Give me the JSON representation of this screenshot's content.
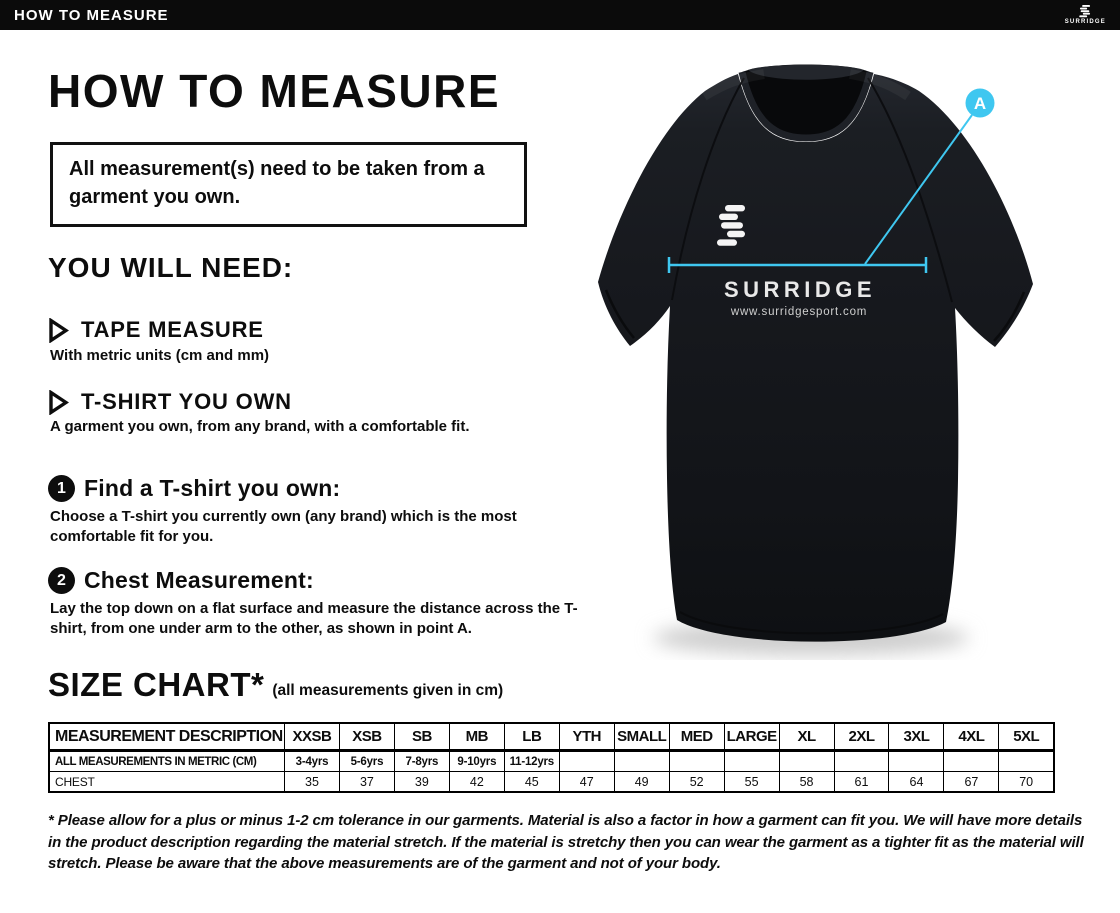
{
  "topbar": {
    "title": "HOW TO MEASURE",
    "brand": "SURRIDGE"
  },
  "page": {
    "title": "HOW TO MEASURE",
    "notice": "All measurement(s) need to be taken from a garment you own.",
    "you_will_need": {
      "heading": "YOU WILL NEED:",
      "items": [
        {
          "title": "TAPE MEASURE",
          "description": "With metric units (cm and mm)"
        },
        {
          "title": "T-SHIRT YOU OWN",
          "description": "A garment you own, from any brand, with a comfortable fit."
        }
      ]
    },
    "steps": [
      {
        "number": "1",
        "title": "Find a T-shirt you own:",
        "description": "Choose a T-shirt you currently own (any brand) which is the most comfortable fit for you."
      },
      {
        "number": "2",
        "title": "Chest Measurement:",
        "description": "Lay the top down on a flat surface and measure the distance across the T-shirt, from one under arm to the other, as shown in point A."
      }
    ],
    "size_chart": {
      "heading": "SIZE CHART*",
      "subheading": "(all measurements given in cm)"
    },
    "footnote": "* Please allow for a plus or minus 1-2 cm tolerance in our garments. Material is also a factor in how a garment can fit you. We will have more details in the product description regarding the material stretch.  If the material is stretchy then you can wear the garment as a tighter fit as the material will stretch.  Please be aware that the above measurements are of the garment and not of your body."
  },
  "shirt": {
    "brand": "SURRIDGE",
    "website": "www.surridgesport.com",
    "marker_label": "A",
    "accent_color": "#3fc7f0",
    "fabric_color": "#17191d"
  },
  "chart_data": {
    "type": "table",
    "title": "SIZE CHART (all measurements given in cm)",
    "columns": [
      "MEASUREMENT DESCRIPTION",
      "XXSB",
      "XSB",
      "SB",
      "MB",
      "LB",
      "YTH",
      "SMALL",
      "MED",
      "LARGE",
      "XL",
      "2XL",
      "3XL",
      "4XL",
      "5XL"
    ],
    "rows": [
      [
        "ALL MEASUREMENTS IN METRIC (CM)",
        "3-4yrs",
        "5-6yrs",
        "7-8yrs",
        "9-10yrs",
        "11-12yrs",
        "",
        "",
        "",
        "",
        "",
        "",
        "",
        "",
        ""
      ],
      [
        "CHEST",
        "35",
        "37",
        "39",
        "42",
        "45",
        "47",
        "49",
        "52",
        "55",
        "58",
        "61",
        "64",
        "67",
        "70"
      ]
    ]
  }
}
